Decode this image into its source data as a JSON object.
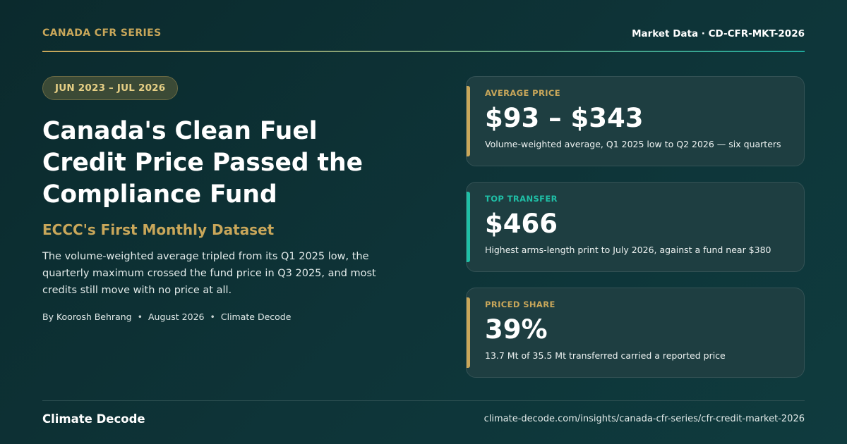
{
  "header": {
    "series": "CANADA CFR SERIES",
    "market_data": "Market Data · CD-CFR-MKT-2026"
  },
  "date_range": "JUN 2023 – JUL 2026",
  "headline": "Canada's Clean Fuel Credit Price Passed the Compliance Fund",
  "subhead": "ECCC's First Monthly Dataset",
  "summary": "The volume-weighted average tripled from its Q1 2025 low, the quarterly maximum crossed the fund price in Q3 2025, and most credits still move with no price at all.",
  "byline": {
    "author": "By Koorosh Behrang",
    "date": "August 2026",
    "publisher": "Climate Decode",
    "separator": "•"
  },
  "cards": [
    {
      "label": "AVERAGE PRICE",
      "value": "$93 – $343",
      "description": "Volume-weighted average, Q1 2025 low to Q2 2026 — six quarters",
      "accent": "#c9a75a"
    },
    {
      "label": "TOP TRANSFER",
      "value": "$466",
      "description": "Highest arms-length print to July 2026, against a fund near $380",
      "accent": "#1fbfa6"
    },
    {
      "label": "PRICED SHARE",
      "value": "39%",
      "description": "13.7 Mt of 35.5 Mt transferred carried a reported price",
      "accent": "#c9a75a"
    }
  ],
  "footer": {
    "brand": "Climate Decode",
    "url": "climate-decode.com/insights/canada-cfr-series/cfr-credit-market-2026"
  },
  "colors": {
    "gold": "#c9a75a",
    "teal": "#1fbfa6",
    "background": "#0e3438"
  }
}
